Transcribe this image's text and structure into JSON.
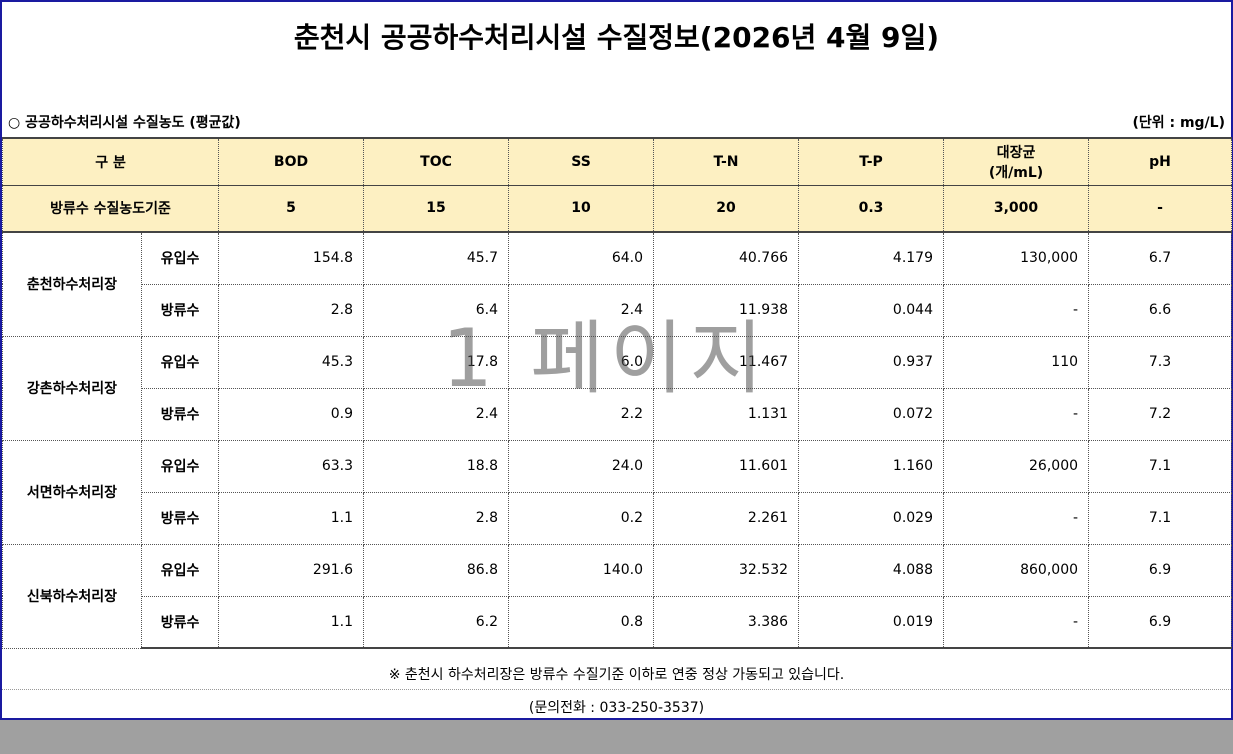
{
  "title": "춘천시 공공하수처리시설 수질정보(2026년 4월 9일)",
  "subtitle": "○ 공공하수처리시설 수질농도 (평균값)",
  "unit": "(단위 : mg/L)",
  "header": {
    "category": "구  분",
    "cols": [
      "BOD",
      "TOC",
      "SS",
      "T-N",
      "T-P",
      "대장균\n(개/mL)",
      "pH"
    ]
  },
  "standard": {
    "label": "방류수 수질농도기준",
    "values": [
      "5",
      "15",
      "10",
      "20",
      "0.3",
      "3,000",
      "-"
    ]
  },
  "plants": [
    {
      "name": "춘천하수처리장",
      "rows": [
        {
          "kind": "유입수",
          "values": [
            "154.8",
            "45.7",
            "64.0",
            "40.766",
            "4.179",
            "130,000",
            "6.7"
          ]
        },
        {
          "kind": "방류수",
          "values": [
            "2.8",
            "6.4",
            "2.4",
            "11.938",
            "0.044",
            "-",
            "6.6"
          ]
        }
      ]
    },
    {
      "name": "강촌하수처리장",
      "rows": [
        {
          "kind": "유입수",
          "values": [
            "45.3",
            "17.8",
            "6.0",
            "11.467",
            "0.937",
            "110",
            "7.3"
          ]
        },
        {
          "kind": "방류수",
          "values": [
            "0.9",
            "2.4",
            "2.2",
            "1.131",
            "0.072",
            "-",
            "7.2"
          ]
        }
      ]
    },
    {
      "name": "서면하수처리장",
      "rows": [
        {
          "kind": "유입수",
          "values": [
            "63.3",
            "18.8",
            "24.0",
            "11.601",
            "1.160",
            "26,000",
            "7.1"
          ]
        },
        {
          "kind": "방류수",
          "values": [
            "1.1",
            "2.8",
            "0.2",
            "2.261",
            "0.029",
            "-",
            "7.1"
          ]
        }
      ]
    },
    {
      "name": "신북하수처리장",
      "rows": [
        {
          "kind": "유입수",
          "values": [
            "291.6",
            "86.8",
            "140.0",
            "32.532",
            "4.088",
            "860,000",
            "6.9"
          ]
        },
        {
          "kind": "방류수",
          "values": [
            "1.1",
            "6.2",
            "0.8",
            "3.386",
            "0.019",
            "-",
            "6.9"
          ]
        }
      ]
    }
  ],
  "note": "※ 춘천시 하수처리장은 방류수 수질기준 이하로 연중 정상 가동되고 있습니다.",
  "contact": "(문의전화 : 033-250-3537)",
  "watermark": "1 페이지"
}
